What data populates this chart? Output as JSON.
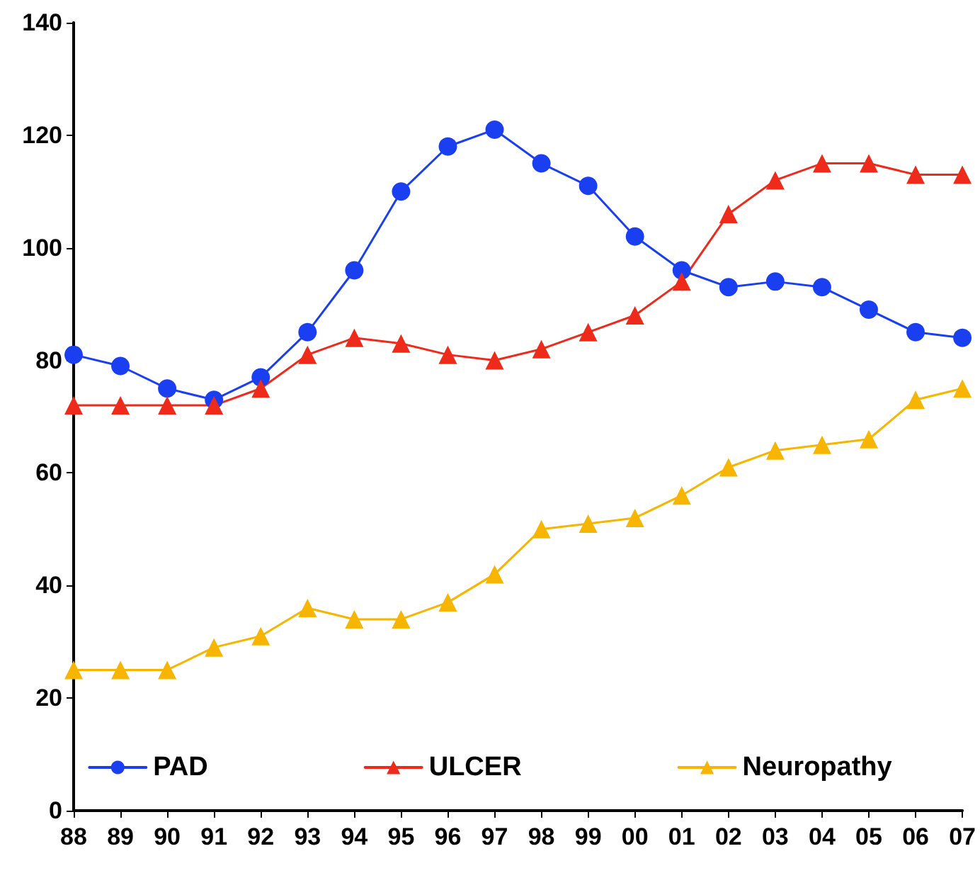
{
  "chart_data": {
    "type": "line",
    "categories": [
      "88",
      "89",
      "90",
      "91",
      "92",
      "93",
      "94",
      "95",
      "96",
      "97",
      "98",
      "99",
      "00",
      "01",
      "02",
      "03",
      "04",
      "05",
      "06",
      "07"
    ],
    "series": [
      {
        "name": "PAD",
        "color": "#1a3ff0",
        "marker": "circle",
        "values": [
          81,
          79,
          75,
          73,
          77,
          85,
          96,
          110,
          118,
          121,
          115,
          111,
          102,
          96,
          93,
          94,
          93,
          89,
          85,
          84
        ]
      },
      {
        "name": "ULCER",
        "color": "#ee2a1a",
        "marker": "triangle",
        "values": [
          72,
          72,
          72,
          72,
          75,
          81,
          84,
          83,
          81,
          80,
          82,
          85,
          88,
          94,
          106,
          112,
          115,
          115,
          113,
          113
        ]
      },
      {
        "name": "Neuropathy",
        "color": "#f7b500",
        "marker": "triangle",
        "values": [
          25,
          25,
          25,
          29,
          31,
          36,
          34,
          34,
          37,
          42,
          50,
          51,
          52,
          56,
          61,
          64,
          65,
          66,
          73,
          75
        ]
      }
    ],
    "ylim": [
      0,
      140
    ],
    "yticks": [
      0,
      20,
      40,
      60,
      80,
      100,
      120,
      140
    ],
    "grid": false,
    "legend": "bottom",
    "line_style": "solid"
  }
}
